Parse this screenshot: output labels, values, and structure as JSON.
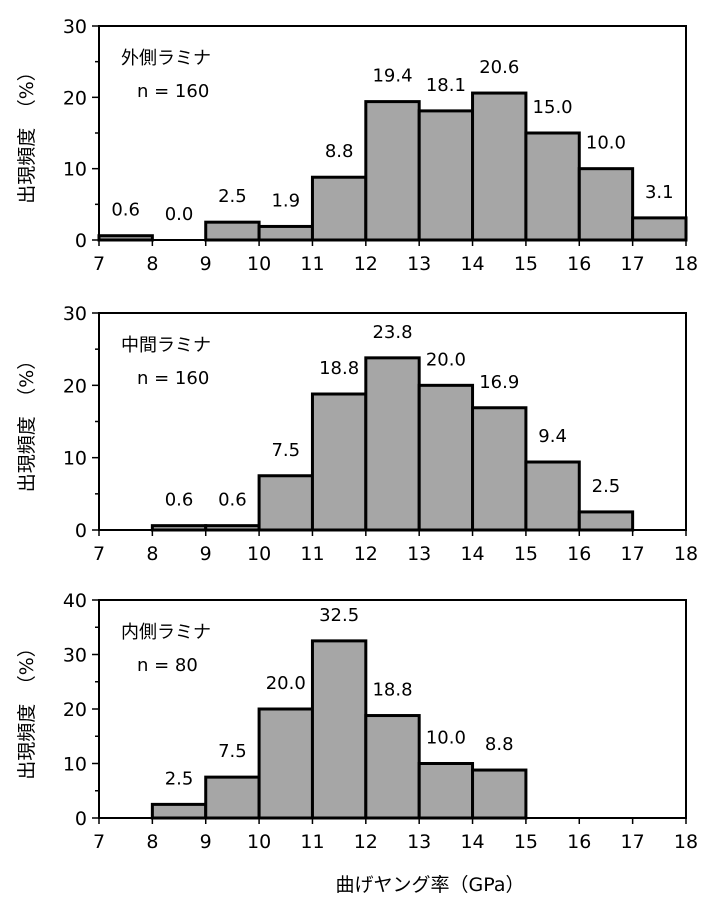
{
  "figure": {
    "xlabel": "曲げヤング率（GPa）"
  },
  "chart_data": [
    {
      "type": "bar",
      "panel_title": "外側ラミナ",
      "panel_n": "n = 160",
      "ylabel": "出現頻度　（%）",
      "xlabel": "",
      "x_ticks": [
        "7",
        "8",
        "9",
        "10",
        "11",
        "12",
        "13",
        "14",
        "15",
        "16",
        "17",
        "18"
      ],
      "y_ticks": [
        "0",
        "10",
        "20",
        "30"
      ],
      "ylim": [
        0,
        30
      ],
      "xlim": [
        7,
        18
      ],
      "bins": [
        [
          7,
          8
        ],
        [
          8,
          9
        ],
        [
          9,
          10
        ],
        [
          10,
          11
        ],
        [
          11,
          12
        ],
        [
          12,
          13
        ],
        [
          13,
          14
        ],
        [
          14,
          15
        ],
        [
          15,
          16
        ],
        [
          16,
          17
        ],
        [
          17,
          18
        ]
      ],
      "values": [
        0.6,
        0.0,
        2.5,
        1.9,
        8.8,
        19.4,
        18.1,
        20.6,
        15.0,
        10.0,
        3.1
      ],
      "value_labels": [
        "0.6",
        "0.0",
        "2.5",
        "1.9",
        "8.8",
        "19.4",
        "18.1",
        "20.6",
        "15.0",
        "10.0",
        "3.1"
      ],
      "bar_color": "#a6a6a6"
    },
    {
      "type": "bar",
      "panel_title": "中間ラミナ",
      "panel_n": "n = 160",
      "ylabel": "出現頻度　（%）",
      "xlabel": "",
      "x_ticks": [
        "7",
        "8",
        "9",
        "10",
        "11",
        "12",
        "13",
        "14",
        "15",
        "16",
        "17",
        "18"
      ],
      "y_ticks": [
        "0",
        "10",
        "20",
        "30"
      ],
      "ylim": [
        0,
        30
      ],
      "xlim": [
        7,
        18
      ],
      "bins": [
        [
          8,
          9
        ],
        [
          9,
          10
        ],
        [
          10,
          11
        ],
        [
          11,
          12
        ],
        [
          12,
          13
        ],
        [
          13,
          14
        ],
        [
          14,
          15
        ],
        [
          15,
          16
        ],
        [
          16,
          17
        ]
      ],
      "values": [
        0.6,
        0.6,
        7.5,
        18.8,
        23.8,
        20.0,
        16.9,
        9.4,
        2.5
      ],
      "value_labels": [
        "0.6",
        "0.6",
        "7.5",
        "18.8",
        "23.8",
        "20.0",
        "16.9",
        "9.4",
        "2.5"
      ],
      "bar_color": "#a6a6a6"
    },
    {
      "type": "bar",
      "panel_title": "内側ラミナ",
      "panel_n": "n = 80",
      "ylabel": "出現頻度　（%）",
      "xlabel": "曲げヤング率（GPa）",
      "x_ticks": [
        "7",
        "8",
        "9",
        "10",
        "11",
        "12",
        "13",
        "14",
        "15",
        "16",
        "17",
        "18"
      ],
      "y_ticks": [
        "0",
        "10",
        "20",
        "30",
        "40"
      ],
      "ylim": [
        0,
        40
      ],
      "xlim": [
        7,
        18
      ],
      "bins": [
        [
          8,
          9
        ],
        [
          9,
          10
        ],
        [
          10,
          11
        ],
        [
          11,
          12
        ],
        [
          12,
          13
        ],
        [
          13,
          14
        ],
        [
          14,
          15
        ]
      ],
      "values": [
        2.5,
        7.5,
        20.0,
        32.5,
        18.8,
        10.0,
        8.8
      ],
      "value_labels": [
        "2.5",
        "7.5",
        "20.0",
        "32.5",
        "18.8",
        "10.0",
        "8.8"
      ],
      "bar_color": "#a6a6a6"
    }
  ]
}
